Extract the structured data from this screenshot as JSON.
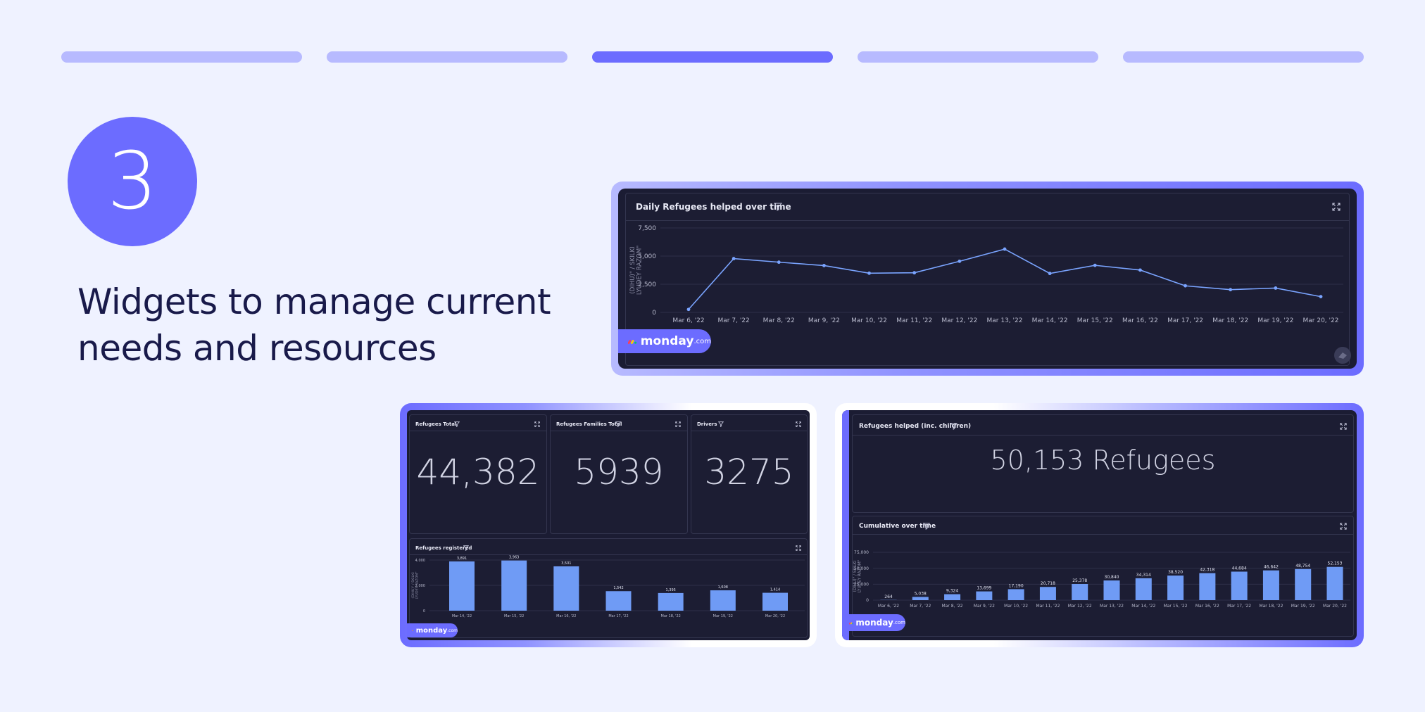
{
  "progress": {
    "total_steps": 5,
    "active_step": 3
  },
  "step": {
    "number": "3"
  },
  "headline": {
    "line1": "Widgets to manage current",
    "line2": "needs and resources"
  },
  "brand": {
    "name": "monday",
    "suffix": ".com",
    "accent": "#6c6cff",
    "bar_color": "#6f9bf5",
    "line_color": "#7aa4ff"
  },
  "daily_widget": {
    "title": "Daily Refugees helped over time",
    "yaxis_label_line1": "(DIHU)\" / SKILKI",
    "yaxis_label_line2": "LYUDEY RAZOM\"",
    "chart_data": {
      "type": "line",
      "title": "Daily Refugees helped over time",
      "categories": [
        "Mar 6, '22",
        "Mar 7, '22",
        "Mar 8, '22",
        "Mar 9, '22",
        "Mar 10, '22",
        "Mar 11, '22",
        "Mar 12, '22",
        "Mar 13, '22",
        "Mar 14, '22",
        "Mar 15, '22",
        "Mar 16, '22",
        "Mar 17, '22",
        "Mar 18, '22",
        "Mar 19, '22",
        "Mar 20, '22"
      ],
      "values": [
        264,
        4780,
        4460,
        4160,
        3480,
        3520,
        4540,
        5620,
        3460,
        4180,
        3760,
        2360,
        2020,
        2160,
        1400
      ],
      "yticks": [
        "0",
        "2,500",
        "5,000",
        "7,500"
      ],
      "ylim": [
        0,
        7500
      ]
    }
  },
  "stats": [
    {
      "title": "Refugees Total",
      "value": "44,382"
    },
    {
      "title": "Refugees Families Total",
      "value": "5939"
    },
    {
      "title": "Drivers",
      "value": "3275"
    }
  ],
  "registered_widget": {
    "title": "Refugees registered",
    "yaxis_label_line1": "(DIHU)\" / SKILKI",
    "yaxis_label_line2": "LYUDEY RAZOM\"",
    "chart_data": {
      "type": "bar",
      "title": "Refugees registered",
      "categories": [
        "Mar 14, '22",
        "Mar 15, '22",
        "Mar 16, '22",
        "Mar 17, '22",
        "Mar 18, '22",
        "Mar 19, '22",
        "Mar 20, '22"
      ],
      "values": [
        3891,
        3963,
        3501,
        1542,
        1395,
        1608,
        1414
      ],
      "labels": [
        "3,891",
        "3,963",
        "3,501",
        "1,542",
        "1,395",
        "1,608",
        "1,414"
      ],
      "yticks": [
        "0",
        "2,000",
        "4,000"
      ],
      "ylim": [
        0,
        4000
      ]
    }
  },
  "helped_widget": {
    "title": "Refugees helped (inc. children)",
    "value": "50,153 Refugees"
  },
  "cumulative_widget": {
    "title": "Cumulative over time",
    "yaxis_label_line1": "(DIHU)\" / SKILKI",
    "yaxis_label_line2": "LYUDEY RAZOM\"",
    "chart_data": {
      "type": "bar",
      "title": "Cumulative over time",
      "categories": [
        "Mar 6, '22",
        "Mar 7, '22",
        "Mar 8, '22",
        "Mar 9, '22",
        "Mar 10, '22",
        "Mar 11, '22",
        "Mar 12, '22",
        "Mar 13, '22",
        "Mar 14, '22",
        "Mar 15, '22",
        "Mar 16, '22",
        "Mar 17, '22",
        "Mar 18, '22",
        "Mar 19, '22",
        "Mar 20, '22"
      ],
      "values": [
        264,
        5038,
        9324,
        13699,
        17190,
        20718,
        25378,
        30840,
        34314,
        38520,
        42318,
        44684,
        46642,
        48754,
        52153
      ],
      "labels": [
        "264",
        "5,038",
        "9,324",
        "13,699",
        "17,190",
        "20,718",
        "25,378",
        "30,840",
        "34,314",
        "38,520",
        "42,318",
        "44,684",
        "46,642",
        "48,754",
        "52,153"
      ],
      "yticks": [
        "0",
        "25,000",
        "50,000",
        "75,000"
      ],
      "ylim": [
        0,
        75000
      ]
    }
  }
}
